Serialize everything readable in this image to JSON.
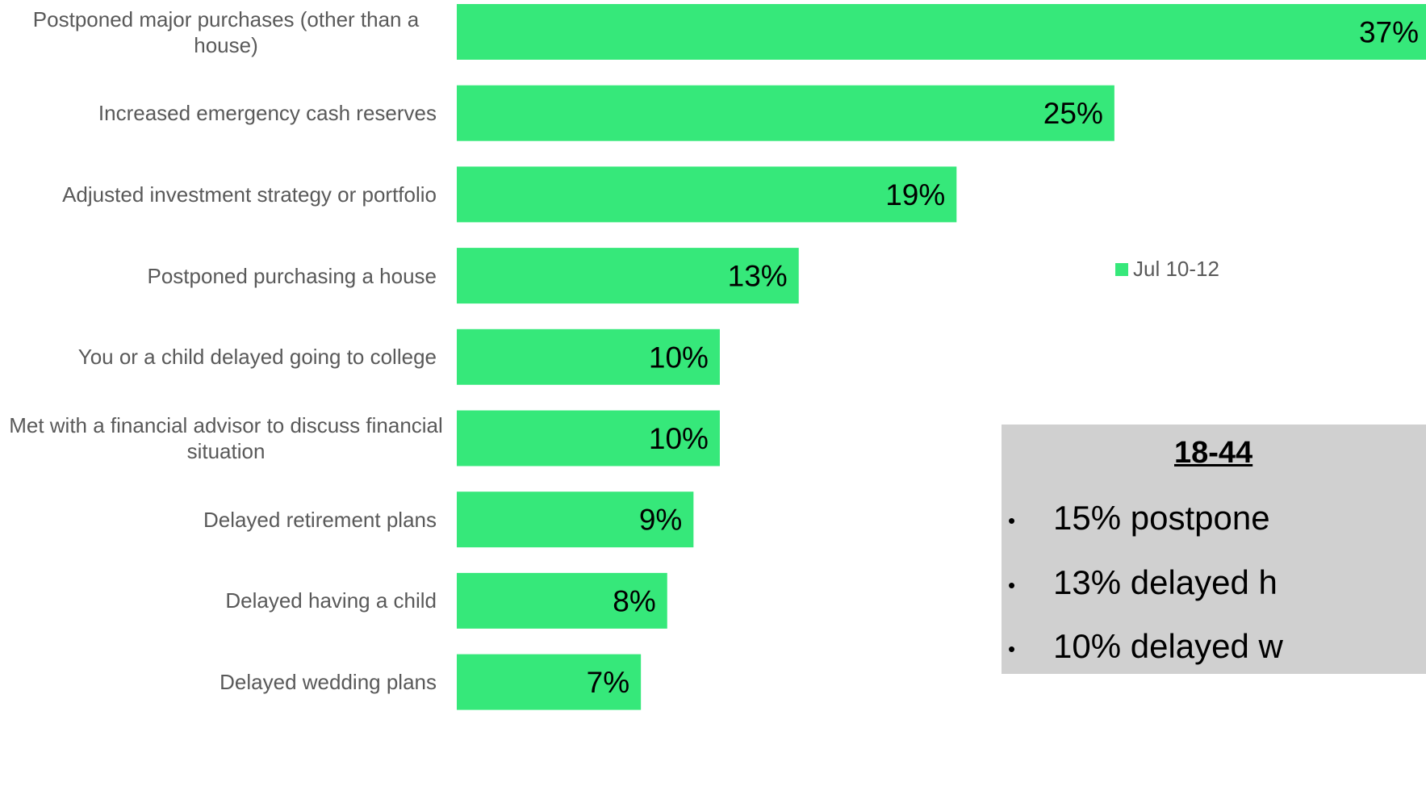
{
  "chart_data": {
    "type": "bar",
    "orientation": "horizontal",
    "categories": [
      "Postponed major purchases (other than a house)",
      "Increased emergency cash reserves",
      "Adjusted investment strategy or portfolio",
      "Postponed purchasing a house",
      "You or a child delayed going to college",
      "Met with a financial advisor to discuss financial situation",
      "Delayed retirement plans",
      "Delayed having a child",
      "Delayed wedding plans"
    ],
    "series": [
      {
        "name": "Jul 10-12",
        "values": [
          37,
          25,
          19,
          13,
          10,
          10,
          9,
          8,
          7
        ]
      }
    ],
    "value_labels": [
      "37%",
      "25%",
      "19%",
      "13%",
      "10%",
      "10%",
      "9%",
      "8%",
      "7%"
    ],
    "legend": "right",
    "grid": false,
    "xlim": [
      0,
      37
    ],
    "bar_color": "#36e87a"
  },
  "callout": {
    "title": "18-44",
    "items": [
      "15% postpone",
      "13% delayed h",
      "10% delayed w"
    ]
  },
  "colors": {
    "bar": "#36e87a",
    "callout_bg": "#d0d0d0",
    "label_text": "#595959"
  }
}
